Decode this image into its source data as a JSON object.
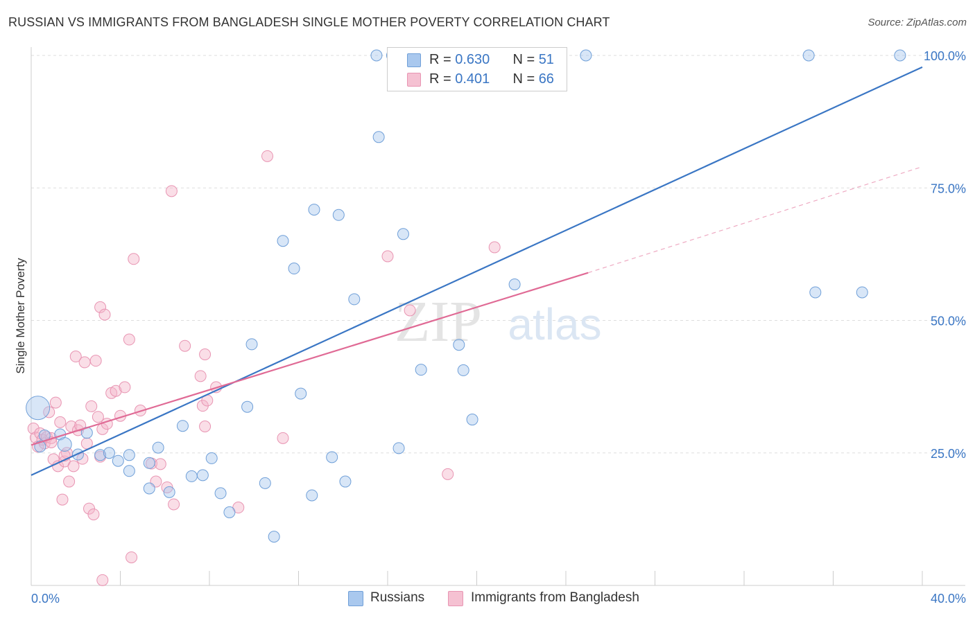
{
  "title": "RUSSIAN VS IMMIGRANTS FROM BANGLADESH SINGLE MOTHER POVERTY CORRELATION CHART",
  "source": "Source: ZipAtlas.com",
  "watermark": {
    "zip": "ZIP",
    "atlas": "atlas"
  },
  "legend_top": {
    "russians": {
      "r_label": "R = ",
      "r_value": "0.630",
      "n_label": "N = ",
      "n_value": "51"
    },
    "bangladesh": {
      "r_label": "R = ",
      "r_value": "0.401",
      "n_label": "N = ",
      "n_value": "66"
    }
  },
  "legend_bottom": {
    "russians": "Russians",
    "bangladesh": "Immigrants from Bangladesh"
  },
  "colors": {
    "blue": "#3a76c4",
    "blue_fill": "#a9c8ee",
    "pink": "#e06a95",
    "pink_fill": "#f5b6c9",
    "grid": "#dddddd"
  },
  "chart_data": {
    "type": "scatter",
    "title": "RUSSIAN VS IMMIGRANTS FROM BANGLADESH SINGLE MOTHER POVERTY CORRELATION CHART",
    "xlabel": "",
    "ylabel": "Single Mother Poverty",
    "xlim": [
      0,
      40
    ],
    "ylim": [
      0,
      100
    ],
    "x_tick_labels": [
      "0.0%",
      "40.0%"
    ],
    "y_ticks": [
      25,
      50,
      75,
      100
    ],
    "y_tick_labels": [
      "25.0%",
      "50.0%",
      "75.0%",
      "100.0%"
    ],
    "grid": "horizontal dashed",
    "legend": "top-center",
    "series": [
      {
        "name": "Russians",
        "r": 0.63,
        "n": 51,
        "trend": {
          "x": [
            0,
            40
          ],
          "y": [
            20.8,
            97.8
          ]
        },
        "points": [
          [
            1.3,
            28.5
          ],
          [
            2.1,
            24.7
          ],
          [
            1.5,
            26.6
          ],
          [
            0.4,
            26.2
          ],
          [
            0.6,
            28.3
          ],
          [
            3.1,
            24.6
          ],
          [
            3.5,
            25.0
          ],
          [
            2.5,
            28.8
          ],
          [
            3.9,
            23.5
          ],
          [
            4.4,
            24.6
          ],
          [
            4.4,
            21.6
          ],
          [
            5.3,
            23.1
          ],
          [
            5.3,
            18.3
          ],
          [
            5.7,
            26.0
          ],
          [
            6.2,
            17.6
          ],
          [
            6.8,
            30.1
          ],
          [
            7.2,
            20.6
          ],
          [
            7.7,
            20.8
          ],
          [
            8.1,
            24.0
          ],
          [
            8.5,
            17.4
          ],
          [
            8.9,
            13.8
          ],
          [
            9.7,
            33.7
          ],
          [
            9.9,
            45.5
          ],
          [
            10.5,
            19.3
          ],
          [
            10.9,
            9.2
          ],
          [
            11.3,
            65.0
          ],
          [
            11.8,
            59.8
          ],
          [
            12.1,
            36.2
          ],
          [
            12.6,
            17.0
          ],
          [
            12.7,
            70.9
          ],
          [
            13.5,
            24.2
          ],
          [
            13.8,
            69.9
          ],
          [
            14.1,
            19.6
          ],
          [
            14.5,
            54.0
          ],
          [
            15.6,
            84.6
          ],
          [
            16.5,
            25.9
          ],
          [
            16.7,
            66.3
          ],
          [
            17.5,
            40.7
          ],
          [
            19.2,
            45.4
          ],
          [
            19.4,
            40.6
          ],
          [
            19.8,
            31.3
          ],
          [
            21.7,
            56.8
          ],
          [
            24.9,
            100.0
          ],
          [
            35.2,
            55.3
          ],
          [
            37.3,
            55.3
          ],
          [
            16.2,
            100.0
          ],
          [
            15.5,
            100.0
          ],
          [
            17.4,
            100.0
          ],
          [
            34.9,
            100.0
          ],
          [
            39.0,
            100.0
          ],
          [
            0.3,
            33.5
          ]
        ]
      },
      {
        "name": "Immigrants from Bangladesh",
        "r": 0.401,
        "n": 66,
        "trend_solid": {
          "x": [
            0,
            25
          ],
          "y": [
            26.5,
            59.0
          ]
        },
        "trend_dashed": {
          "x": [
            25,
            40
          ],
          "y": [
            59.0,
            79.0
          ]
        },
        "points": [
          [
            0.1,
            29.6
          ],
          [
            0.2,
            27.9
          ],
          [
            0.3,
            26.2
          ],
          [
            0.4,
            28.7
          ],
          [
            0.5,
            27.5
          ],
          [
            0.6,
            26.8
          ],
          [
            0.7,
            28.0
          ],
          [
            0.8,
            32.7
          ],
          [
            0.9,
            27.8
          ],
          [
            1.0,
            23.8
          ],
          [
            1.1,
            34.5
          ],
          [
            1.2,
            22.5
          ],
          [
            1.3,
            30.8
          ],
          [
            1.4,
            16.2
          ],
          [
            1.5,
            23.4
          ],
          [
            1.6,
            25.0
          ],
          [
            1.7,
            19.6
          ],
          [
            1.8,
            30.0
          ],
          [
            1.9,
            22.5
          ],
          [
            2.0,
            43.2
          ],
          [
            2.1,
            29.3
          ],
          [
            2.2,
            30.2
          ],
          [
            2.3,
            23.9
          ],
          [
            2.4,
            42.1
          ],
          [
            2.5,
            26.8
          ],
          [
            2.6,
            14.5
          ],
          [
            2.7,
            33.8
          ],
          [
            2.8,
            13.4
          ],
          [
            2.9,
            42.4
          ],
          [
            3.0,
            31.8
          ],
          [
            3.2,
            1.0
          ],
          [
            3.1,
            24.3
          ],
          [
            3.1,
            52.5
          ],
          [
            3.2,
            29.5
          ],
          [
            3.3,
            51.1
          ],
          [
            3.4,
            30.5
          ],
          [
            3.6,
            36.3
          ],
          [
            3.8,
            36.7
          ],
          [
            4.0,
            32.0
          ],
          [
            4.2,
            37.4
          ],
          [
            4.4,
            46.4
          ],
          [
            4.5,
            5.3
          ],
          [
            4.6,
            61.6
          ],
          [
            4.9,
            33.0
          ],
          [
            5.4,
            23.0
          ],
          [
            5.6,
            19.6
          ],
          [
            5.8,
            22.9
          ],
          [
            6.1,
            18.5
          ],
          [
            6.3,
            74.4
          ],
          [
            6.4,
            15.3
          ],
          [
            6.9,
            45.2
          ],
          [
            7.6,
            39.5
          ],
          [
            7.7,
            33.9
          ],
          [
            7.8,
            30.0
          ],
          [
            7.8,
            43.6
          ],
          [
            7.9,
            34.9
          ],
          [
            8.3,
            37.4
          ],
          [
            9.3,
            14.7
          ],
          [
            10.6,
            81.0
          ],
          [
            11.3,
            27.8
          ],
          [
            16.0,
            62.1
          ],
          [
            17.0,
            51.9
          ],
          [
            18.7,
            21.0
          ],
          [
            20.8,
            63.8
          ],
          [
            1.5,
            24.5
          ],
          [
            0.9,
            27.0
          ]
        ]
      }
    ]
  }
}
